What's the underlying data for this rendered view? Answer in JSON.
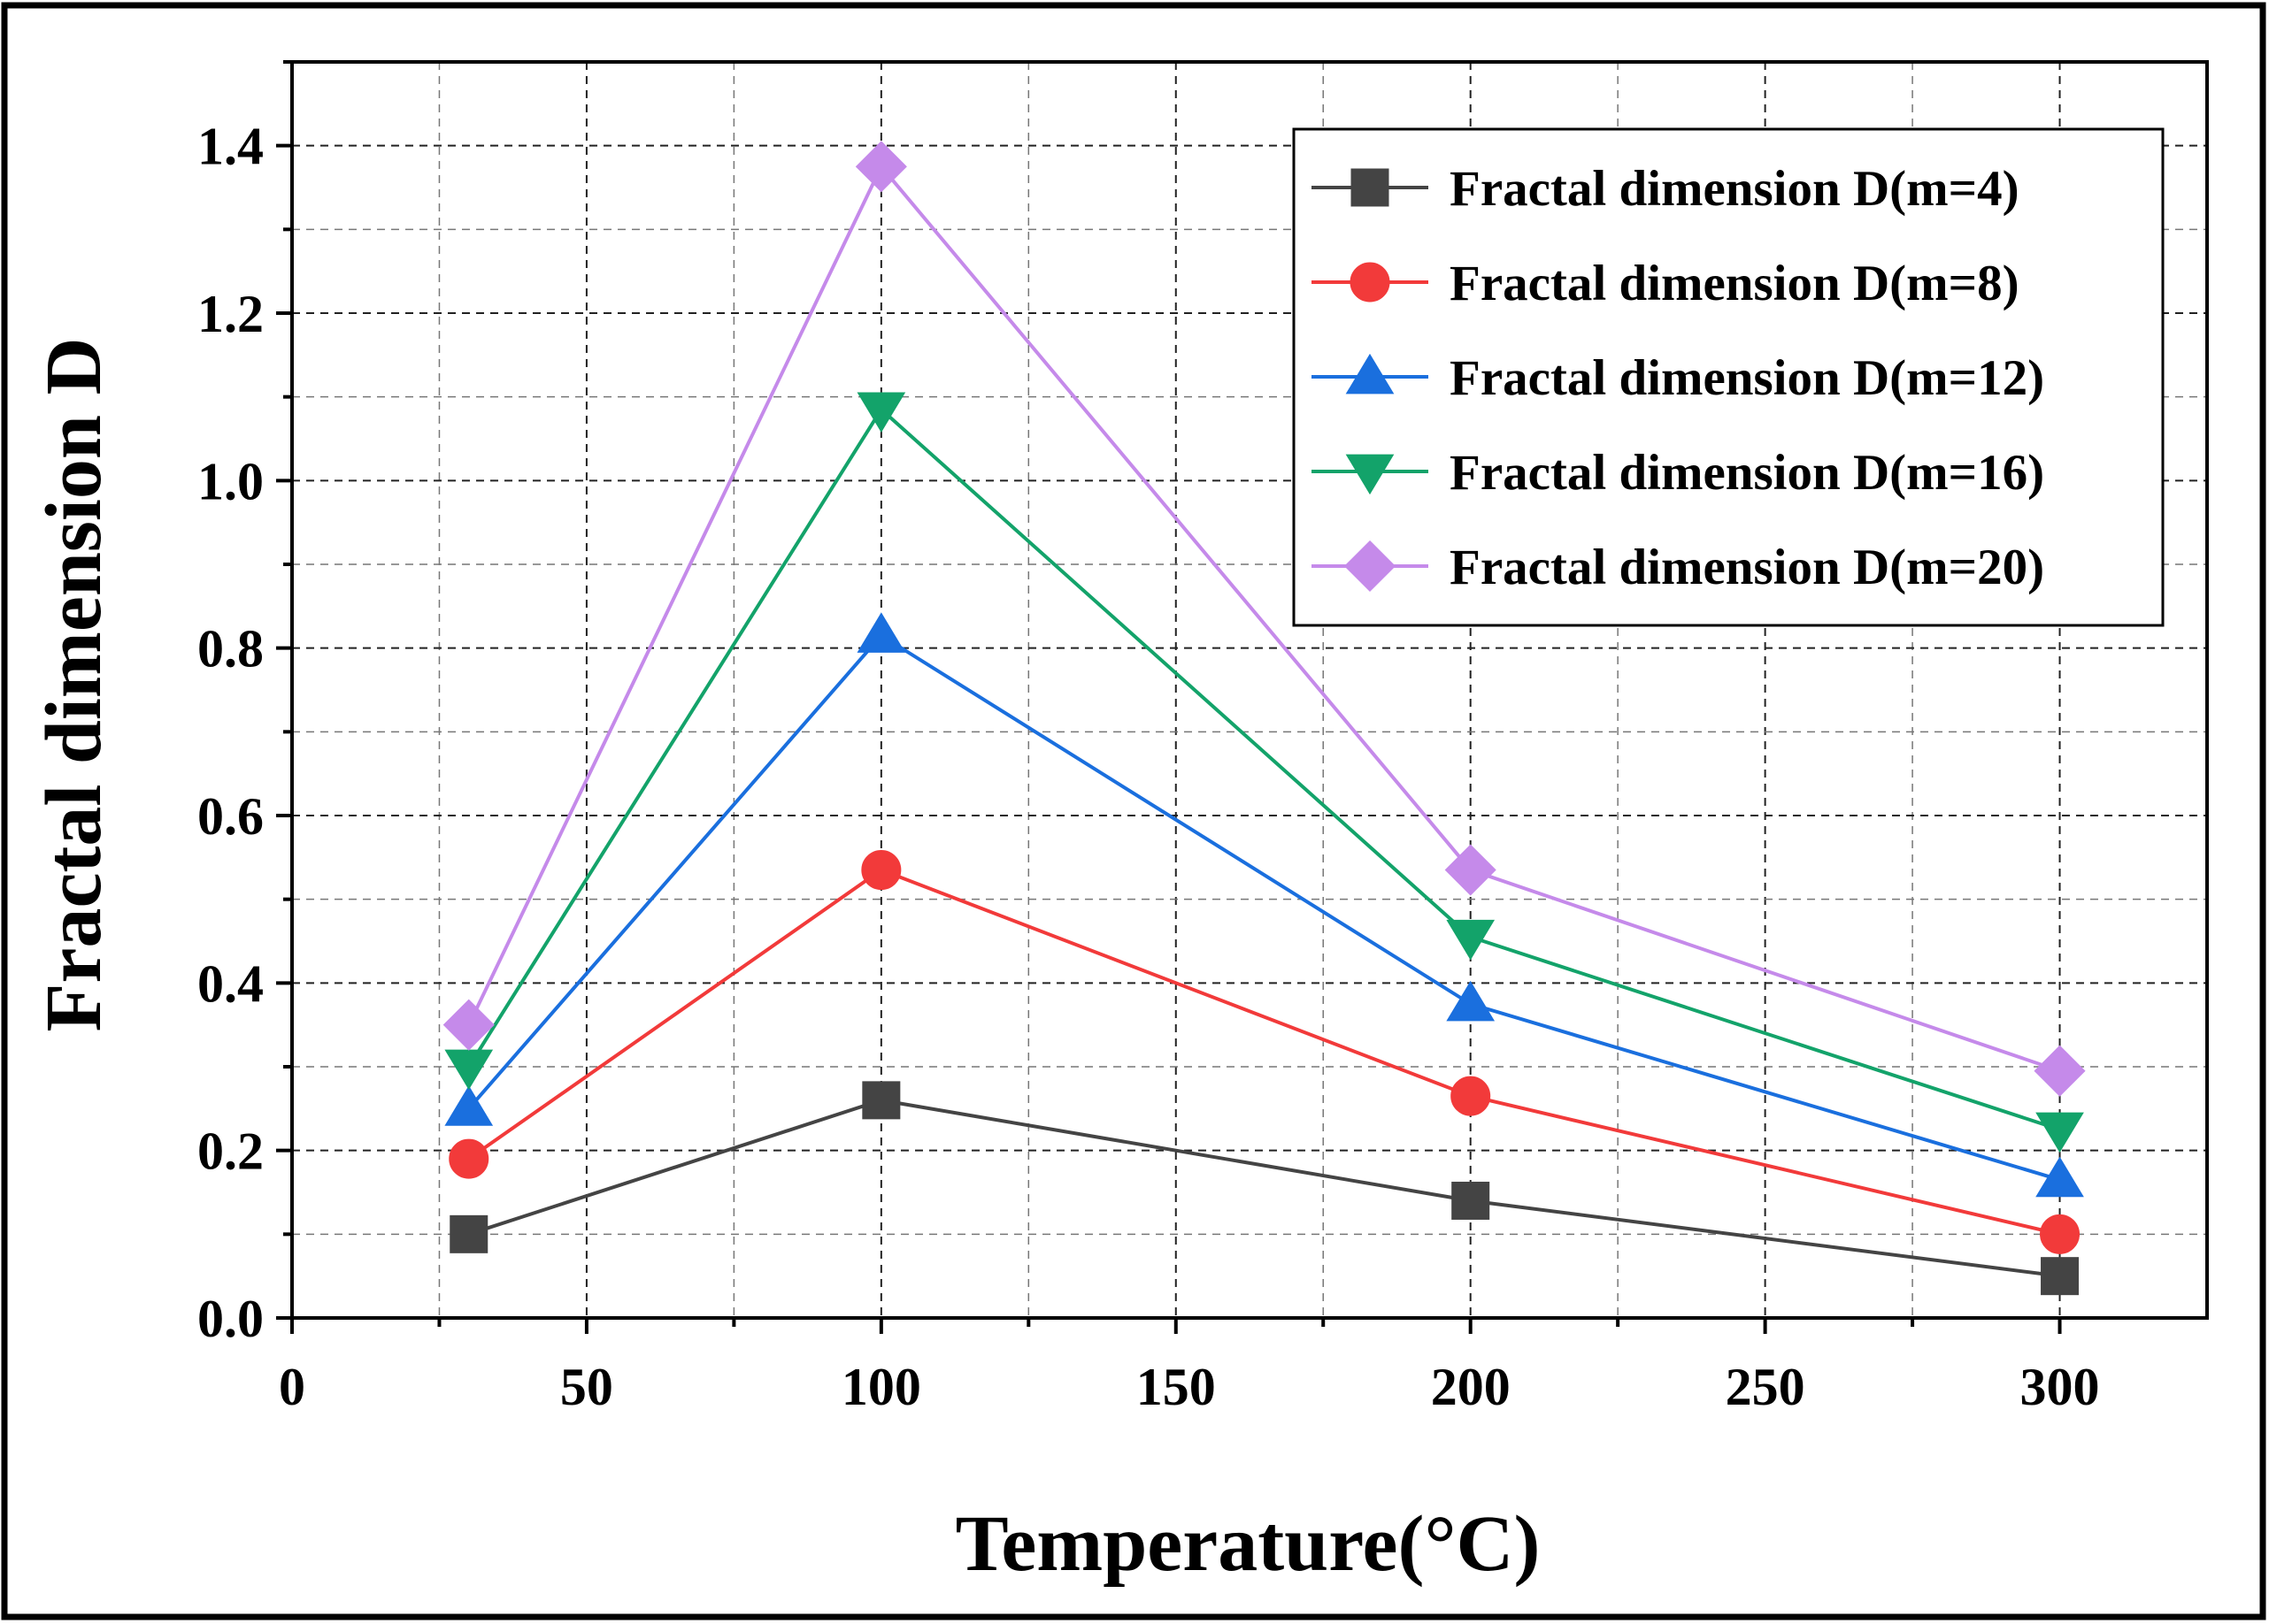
{
  "chart_data": {
    "type": "line",
    "title": "",
    "xlabel": "Temperature(°C)",
    "ylabel": "Fractal dimension D",
    "xlim": [
      0,
      325
    ],
    "ylim": [
      0,
      1.5
    ],
    "xticks": [
      0,
      50,
      100,
      150,
      200,
      250,
      300
    ],
    "xtick_labels": [
      "0",
      "50",
      "100",
      "150",
      "200",
      "250",
      "300"
    ],
    "yticks": [
      0.0,
      0.2,
      0.4,
      0.6,
      0.8,
      1.0,
      1.2,
      1.4
    ],
    "ytick_labels": [
      "0.0",
      "0.2",
      "0.4",
      "0.6",
      "0.8",
      "1.0",
      "1.2",
      "1.4"
    ],
    "grid": true,
    "legend_position": "top-right",
    "x": [
      30,
      100,
      200,
      300
    ],
    "series": [
      {
        "name": "Fractal dimension D(m=4)",
        "values": [
          0.1,
          0.26,
          0.14,
          0.05
        ],
        "color": "#444444",
        "marker": "square"
      },
      {
        "name": "Fractal dimension D(m=8)",
        "values": [
          0.19,
          0.535,
          0.265,
          0.1
        ],
        "color": "#f23a3a",
        "marker": "circle"
      },
      {
        "name": "Fractal dimension D(m=12)",
        "values": [
          0.25,
          0.815,
          0.375,
          0.165
        ],
        "color": "#1a6fde",
        "marker": "triangle-up"
      },
      {
        "name": "Fractal dimension D(m=16)",
        "values": [
          0.3,
          1.085,
          0.455,
          0.225
        ],
        "color": "#13a36a",
        "marker": "triangle-down"
      },
      {
        "name": "Fractal dimension D(m=20)",
        "values": [
          0.35,
          1.375,
          0.535,
          0.295
        ],
        "color": "#c58aea",
        "marker": "diamond"
      }
    ]
  }
}
